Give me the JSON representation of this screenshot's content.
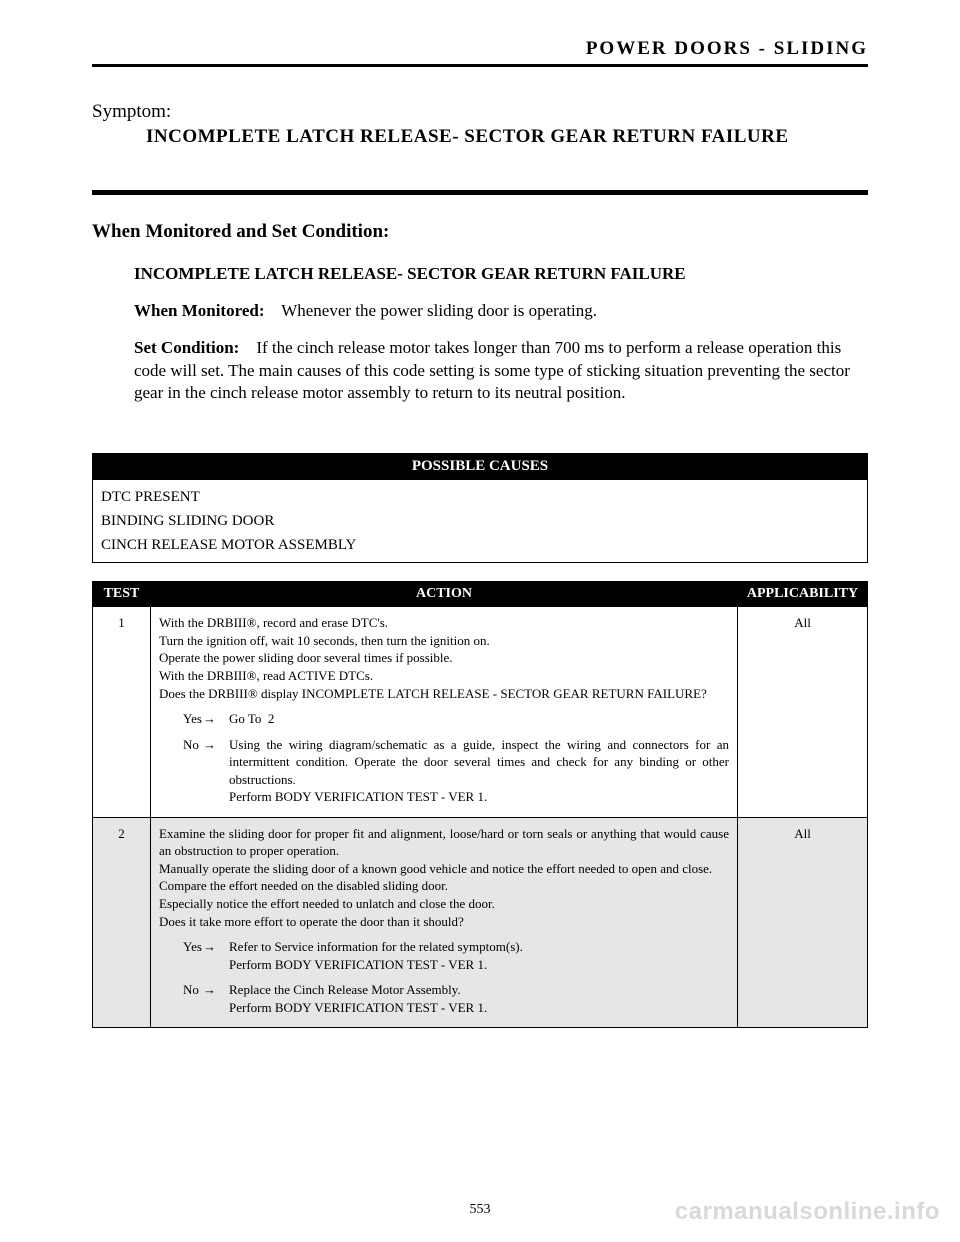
{
  "colors": {
    "text": "#000000",
    "bg": "#ffffff",
    "shade": "#e6e6e6",
    "header_bg": "#000000",
    "header_fg": "#ffffff",
    "watermark": "#d9d9d9"
  },
  "header": {
    "section_title": "POWER DOORS - SLIDING"
  },
  "symptom": {
    "label": "Symptom:",
    "title": "INCOMPLETE LATCH RELEASE- SECTOR GEAR RETURN FAILURE"
  },
  "monitored": {
    "heading": "When Monitored and Set Condition:",
    "subheading": "INCOMPLETE LATCH RELEASE- SECTOR GEAR RETURN FAILURE",
    "when_label": "When Monitored:",
    "when_text": "Whenever the power sliding door is operating.",
    "set_label": "Set Condition:",
    "set_text": "If the cinch release motor takes longer than 700 ms to perform a release operation this code will set. The main causes of this code setting is some type of sticking situation preventing the sector gear in the cinch release motor assembly to return to its neutral position."
  },
  "causes": {
    "header": "POSSIBLE CAUSES",
    "items": [
      "DTC PRESENT",
      "BINDING SLIDING DOOR",
      "CINCH RELEASE MOTOR ASSEMBLY"
    ]
  },
  "action": {
    "headers": {
      "test": "TEST",
      "action": "ACTION",
      "applicability": "APPLICABILITY"
    },
    "arrow": "→",
    "rows": [
      {
        "num": "1",
        "applicability": "All",
        "lines": [
          "With the DRBIII®, record and erase DTC's.",
          "Turn the ignition off, wait 10 seconds, then turn the ignition on.",
          "Operate the power sliding door several times if possible.",
          "With the DRBIII®, read ACTIVE DTCs.",
          "Does the DRBIII® display INCOMPLETE LATCH RELEASE - SECTOR GEAR RETURN FAILURE?"
        ],
        "yes": "Go To  2",
        "no_lines": [
          "Using the wiring diagram/schematic as a guide, inspect the wiring and connectors for an intermittent condition. Operate the door several times and check for any binding or other obstructions.",
          "Perform BODY VERIFICATION TEST - VER 1."
        ]
      },
      {
        "num": "2",
        "applicability": "All",
        "lines": [
          "Examine the sliding door for proper fit and alignment, loose/hard or torn seals or anything that would cause an obstruction to proper operation.",
          "Manually operate the sliding door of a known good vehicle and notice the effort needed to open and close.",
          "Compare the effort needed on the disabled sliding door.",
          "Especially notice the effort needed to unlatch and close the door.",
          "Does it take more effort to operate the door than it should?"
        ],
        "yes_lines": [
          "Refer to Service information for the related symptom(s).",
          "Perform BODY VERIFICATION TEST - VER 1."
        ],
        "no_lines": [
          "Replace the Cinch Release Motor Assembly.",
          "Perform BODY VERIFICATION TEST - VER 1."
        ]
      }
    ]
  },
  "footer": {
    "page_number": "553",
    "watermark": "carmanualsonline.info"
  },
  "labels": {
    "yes": "Yes",
    "no": "No"
  }
}
